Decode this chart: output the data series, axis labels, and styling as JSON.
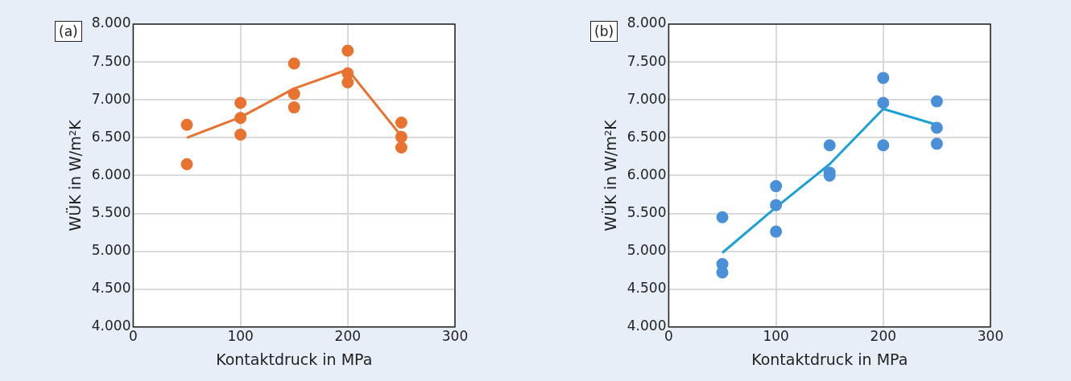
{
  "chart_data": [
    {
      "type": "scatter",
      "title": "(a)",
      "xlabel": "Kontaktdruck in MPa",
      "ylabel": "WÜK in W/m²K",
      "xlim": [
        0,
        300
      ],
      "xticks": [
        0,
        100,
        200,
        300
      ],
      "ylim": [
        4000,
        8000
      ],
      "yticks": [
        {
          "value": 4000,
          "label": "4.000"
        },
        {
          "value": 4500,
          "label": "4.500"
        },
        {
          "value": 5000,
          "label": "5.000"
        },
        {
          "value": 5500,
          "label": "5.500"
        },
        {
          "value": 6000,
          "label": "6.000"
        },
        {
          "value": 6500,
          "label": "6.500"
        },
        {
          "value": 7000,
          "label": "7.000"
        },
        {
          "value": 7500,
          "label": "7.500"
        },
        {
          "value": 8000,
          "label": "8.000"
        }
      ],
      "grid": true,
      "legend": false,
      "series": [
        {
          "marker": "circle",
          "color": "#e8722f",
          "x": [
            50,
            50,
            100,
            100,
            100,
            150,
            150,
            150,
            200,
            200,
            200,
            250,
            250,
            250
          ],
          "values": [
            6670,
            6150,
            6960,
            6760,
            6540,
            7480,
            7080,
            6900,
            7650,
            7350,
            7230,
            6700,
            6510,
            6370
          ]
        },
        {
          "type": "line",
          "marker": "none",
          "color": "#e8722f",
          "x": [
            50,
            100,
            150,
            200,
            250
          ],
          "values": [
            6500,
            6770,
            7150,
            7400,
            6520
          ]
        }
      ]
    },
    {
      "type": "scatter",
      "title": "(b)",
      "xlabel": "Kontaktdruck in MPa",
      "ylabel": "WÜK in W/m²K",
      "xlim": [
        0,
        300
      ],
      "xticks": [
        0,
        100,
        200,
        300
      ],
      "ylim": [
        4000,
        8000
      ],
      "yticks": [
        {
          "value": 4000,
          "label": "4.000"
        },
        {
          "value": 4500,
          "label": "4.500"
        },
        {
          "value": 5000,
          "label": "5.000"
        },
        {
          "value": 5500,
          "label": "5.500"
        },
        {
          "value": 6000,
          "label": "6.000"
        },
        {
          "value": 6500,
          "label": "6.500"
        },
        {
          "value": 7000,
          "label": "7.000"
        },
        {
          "value": 7500,
          "label": "7.500"
        },
        {
          "value": 8000,
          "label": "8.000"
        }
      ],
      "grid": true,
      "legend": false,
      "series": [
        {
          "marker": "circle",
          "color": "#4a90d9",
          "x": [
            50,
            50,
            50,
            100,
            100,
            100,
            150,
            150,
            150,
            200,
            200,
            200,
            250,
            250,
            250
          ],
          "values": [
            5450,
            4830,
            4720,
            5860,
            5610,
            5260,
            6400,
            6040,
            6000,
            7290,
            6960,
            6400,
            6980,
            6630,
            6420
          ]
        },
        {
          "type": "line",
          "marker": "none",
          "color": "#1ba1d6",
          "x": [
            50,
            100,
            150,
            200,
            250
          ],
          "values": [
            4980,
            5580,
            6150,
            6880,
            6670
          ]
        }
      ]
    }
  ]
}
